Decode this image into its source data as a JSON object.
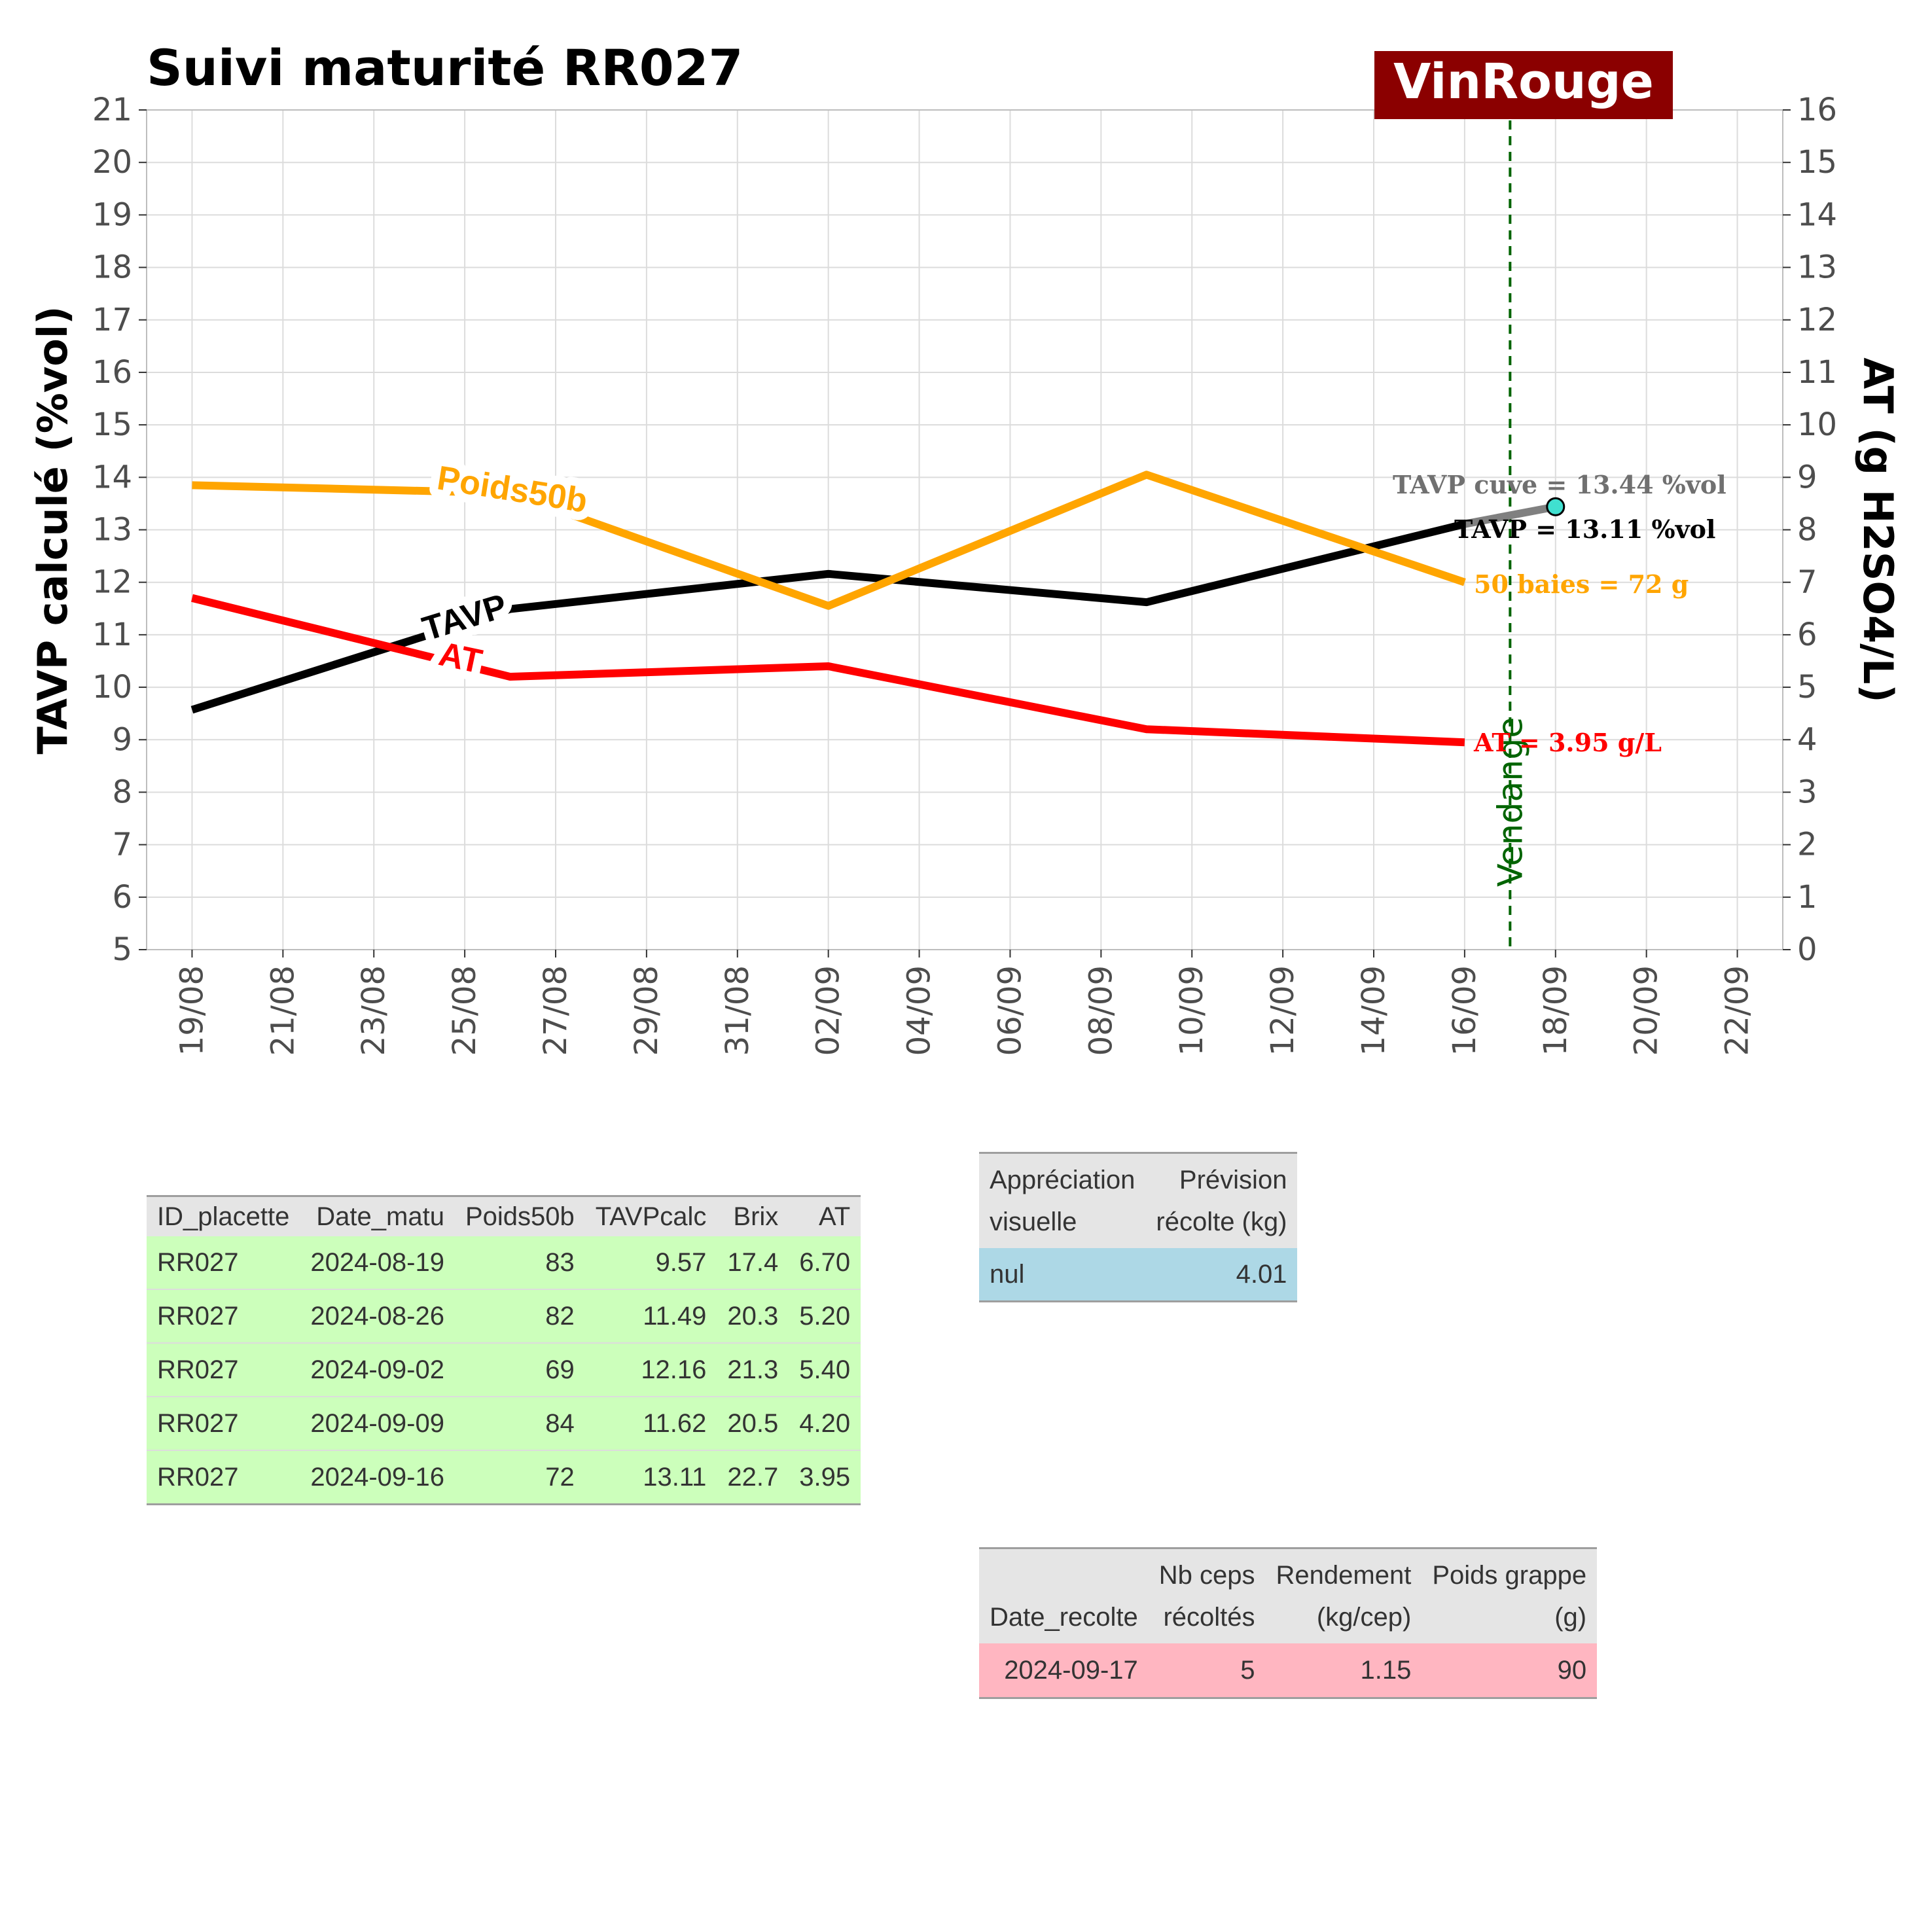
{
  "chart_data": {
    "type": "line",
    "title": "Suivi maturité  RR027",
    "brand": "VinRouge",
    "brand_color": "#8b0000",
    "ylabel_left": "TAVP calculé (%vol)",
    "ylabel_right": "AT (g H2SO4/L)",
    "ylim_left": [
      5,
      21
    ],
    "ylim_right": [
      0,
      16
    ],
    "yticks_left": [
      5,
      6,
      7,
      8,
      9,
      10,
      11,
      12,
      13,
      14,
      15,
      16,
      17,
      18,
      19,
      20,
      21
    ],
    "yticks_right": [
      0,
      1,
      2,
      3,
      4,
      5,
      6,
      7,
      8,
      9,
      10,
      11,
      12,
      13,
      14,
      15,
      16
    ],
    "x_range": [
      "2024-08-18",
      "2024-09-23"
    ],
    "x_ticks": [
      {
        "date": "2024-08-19",
        "label": "19/08"
      },
      {
        "date": "2024-08-21",
        "label": "21/08"
      },
      {
        "date": "2024-08-23",
        "label": "23/08"
      },
      {
        "date": "2024-08-25",
        "label": "25/08"
      },
      {
        "date": "2024-08-27",
        "label": "27/08"
      },
      {
        "date": "2024-08-29",
        "label": "29/08"
      },
      {
        "date": "2024-08-31",
        "label": "31/08"
      },
      {
        "date": "2024-09-02",
        "label": "02/09"
      },
      {
        "date": "2024-09-04",
        "label": "04/09"
      },
      {
        "date": "2024-09-06",
        "label": "06/09"
      },
      {
        "date": "2024-09-08",
        "label": "08/09"
      },
      {
        "date": "2024-09-10",
        "label": "10/09"
      },
      {
        "date": "2024-09-12",
        "label": "12/09"
      },
      {
        "date": "2024-09-14",
        "label": "14/09"
      },
      {
        "date": "2024-09-16",
        "label": "16/09"
      },
      {
        "date": "2024-09-18",
        "label": "18/09"
      },
      {
        "date": "2024-09-20",
        "label": "20/09"
      },
      {
        "date": "2024-09-22",
        "label": "22/09"
      }
    ],
    "grid": true,
    "series": [
      {
        "name": "TAVP",
        "axis": "left",
        "color": "#000000",
        "x": [
          "2024-08-19",
          "2024-08-26",
          "2024-09-02",
          "2024-09-09",
          "2024-09-16"
        ],
        "y": [
          9.57,
          11.49,
          12.16,
          11.62,
          13.11
        ]
      },
      {
        "name": "AT",
        "axis": "right",
        "color": "#ff0000",
        "x": [
          "2024-08-19",
          "2024-08-26",
          "2024-09-02",
          "2024-09-09",
          "2024-09-16"
        ],
        "y": [
          6.7,
          5.2,
          5.4,
          4.2,
          3.95
        ]
      },
      {
        "name": "Poids50b",
        "axis": "right",
        "color": "#ffa500",
        "x": [
          "2024-08-19",
          "2024-08-26",
          "2024-09-02",
          "2024-09-09",
          "2024-09-16"
        ],
        "y": [
          8.85,
          8.7,
          6.55,
          9.05,
          7.0
        ]
      }
    ],
    "cuve_segment": {
      "color": "#808080",
      "marker_color": "#40e0d0",
      "x": [
        "2024-09-16",
        "2024-09-18"
      ],
      "y": [
        13.11,
        13.44
      ]
    },
    "harvest_line": {
      "date": "2024-09-17",
      "label": "Vendange",
      "color": "#006400"
    },
    "annotations": [
      {
        "text": "TAVP cuve = 13.44 %vol",
        "color": "#707070"
      },
      {
        "text": "TAVP = 13.11 %vol",
        "color": "#000000"
      },
      {
        "text": "50 baies = 72 g",
        "color": "#ffa500"
      },
      {
        "text": "AT = 3.95 g/L",
        "color": "#ff0000"
      }
    ]
  },
  "table_matu": {
    "headers": [
      "ID_placette",
      "Date_matu",
      "Poids50b",
      "TAVPcalc",
      "Brix",
      "AT"
    ],
    "rows": [
      [
        "RR027",
        "2024-08-19",
        "83",
        "9.57",
        "17.4",
        "6.70"
      ],
      [
        "RR027",
        "2024-08-26",
        "82",
        "11.49",
        "20.3",
        "5.20"
      ],
      [
        "RR027",
        "2024-09-02",
        "69",
        "12.16",
        "21.3",
        "5.40"
      ],
      [
        "RR027",
        "2024-09-09",
        "84",
        "11.62",
        "20.5",
        "4.20"
      ],
      [
        "RR027",
        "2024-09-16",
        "72",
        "13.11",
        "22.7",
        "3.95"
      ]
    ],
    "row_color": "#ccffbb"
  },
  "table_visu": {
    "headers": [
      [
        "Appréciation",
        "visuelle"
      ],
      [
        "Prévision",
        "récolte (kg)"
      ]
    ],
    "rows": [
      [
        "nul",
        "4.01"
      ]
    ],
    "row_color": "#add8e6"
  },
  "table_recolte": {
    "headers": [
      [
        "",
        "Date_recolte"
      ],
      [
        "Nb ceps",
        "récoltés"
      ],
      [
        "Rendement",
        "(kg/cep)"
      ],
      [
        "Poids grappe",
        "(g)"
      ]
    ],
    "rows": [
      [
        "2024-09-17",
        "5",
        "1.15",
        "90"
      ]
    ],
    "row_color": "#ffb6c1"
  }
}
